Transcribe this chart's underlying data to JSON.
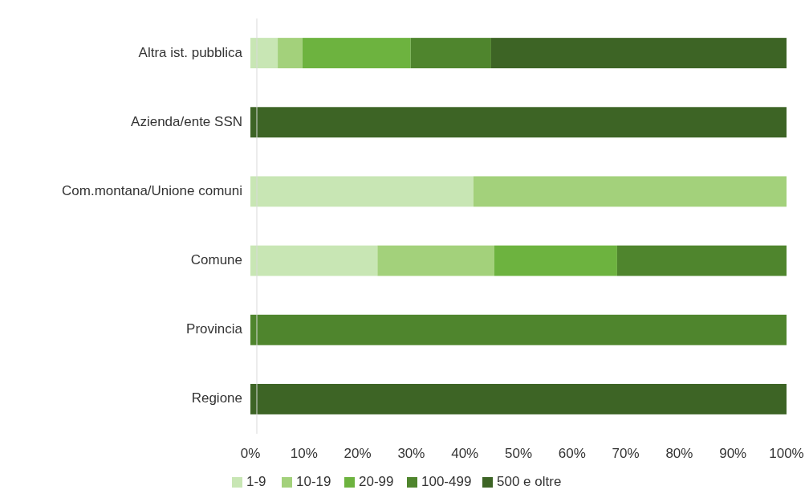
{
  "chart_data": {
    "type": "bar",
    "orientation": "horizontal",
    "stacked": true,
    "categories": [
      "Altra ist. pubblica",
      "Azienda/ente SSN ",
      "Com.montana/Unione comuni",
      "Comune",
      "Provincia",
      "Regione"
    ],
    "series": [
      {
        "name": "1-9",
        "color": "#c8e6b4",
        "values": [
          5.1,
          0,
          41.6,
          23.7,
          0,
          0
        ]
      },
      {
        "name": "10-19",
        "color": "#a3d17b",
        "values": [
          4.6,
          0,
          58.4,
          21.8,
          0,
          0
        ]
      },
      {
        "name": "20-99",
        "color": "#6db33f",
        "values": [
          20.2,
          0,
          0,
          22.9,
          0,
          0
        ]
      },
      {
        "name": "100-499",
        "color": "#4f852d",
        "values": [
          15,
          0,
          0,
          31.6,
          100,
          0
        ]
      },
      {
        "name": "500 e oltre",
        "color": "#3d6425",
        "values": [
          55.1,
          100,
          0,
          0,
          0,
          100
        ]
      }
    ],
    "xlim": [
      0,
      100
    ],
    "xticks": [
      {
        "value": 0,
        "label": "0%"
      },
      {
        "value": 10,
        "label": "10%"
      },
      {
        "value": 20,
        "label": "20%"
      },
      {
        "value": 30,
        "label": "30%"
      },
      {
        "value": 40,
        "label": "40%"
      },
      {
        "value": 50,
        "label": "50%"
      },
      {
        "value": 60,
        "label": "60%"
      },
      {
        "value": 70,
        "label": "70%"
      },
      {
        "value": 80,
        "label": "80%"
      },
      {
        "value": 90,
        "label": "90%"
      },
      {
        "value": 100,
        "label": "100%"
      }
    ],
    "legend": "bottom",
    "grid": false
  }
}
